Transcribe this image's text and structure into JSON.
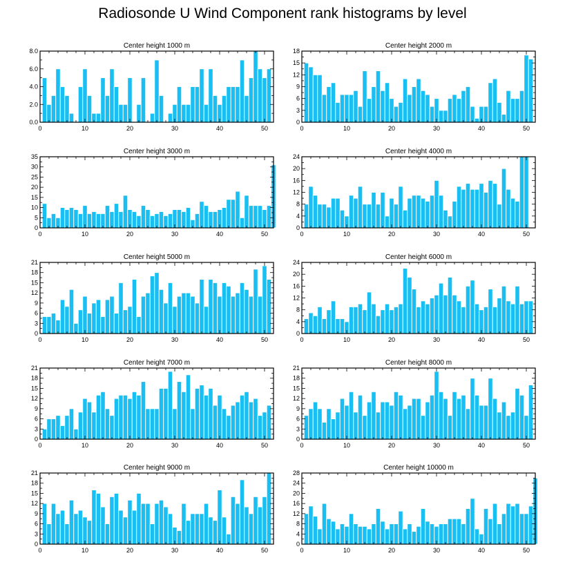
{
  "title": "Radiosonde U Wind Component rank histograms by level",
  "colors": {
    "bar": "#19bff2",
    "bar_edge": "#ffffff",
    "axis": "#000000"
  },
  "chart_data": [
    {
      "type": "bar",
      "title": "Center height 1000 m",
      "xlim": [
        0,
        52
      ],
      "ylim": [
        0,
        8
      ],
      "xticks": [
        0,
        10,
        20,
        30,
        40,
        50
      ],
      "yticks": [
        0,
        2,
        4,
        6,
        8
      ],
      "ytick_labels": [
        "0.0",
        "2.0",
        "4.0",
        "6.0",
        "8.0"
      ],
      "values": [
        5,
        2,
        3,
        6,
        4,
        3,
        1,
        0,
        4,
        6,
        3,
        1,
        1,
        5,
        3,
        6,
        4,
        2,
        2,
        5,
        0,
        2,
        5,
        0,
        1,
        7,
        3,
        0,
        1,
        2,
        4,
        2,
        2,
        4,
        4,
        6,
        2,
        6,
        3,
        2,
        3,
        4,
        4,
        4,
        7,
        3,
        5,
        8,
        6,
        5,
        6
      ]
    },
    {
      "type": "bar",
      "title": "Center height 2000 m",
      "xlim": [
        0,
        52
      ],
      "ylim": [
        0,
        18
      ],
      "xticks": [
        0,
        10,
        20,
        30,
        40,
        50
      ],
      "yticks": [
        0,
        3,
        6,
        9,
        12,
        15,
        18
      ],
      "ytick_labels": [
        "0",
        "3",
        "6",
        "9",
        "12",
        "15",
        "18"
      ],
      "values": [
        15,
        14,
        12,
        12,
        7,
        9,
        10,
        5,
        7,
        7,
        7,
        8,
        4,
        13,
        6,
        9,
        13,
        8,
        10,
        6,
        4,
        5,
        11,
        7,
        9,
        11,
        8,
        7,
        4,
        6,
        3,
        3,
        6,
        7,
        6,
        8,
        9,
        4,
        1,
        4,
        4,
        10,
        11,
        5,
        2,
        8,
        6,
        6,
        8,
        17,
        16
      ]
    },
    {
      "type": "bar",
      "title": "Center height 3000 m",
      "xlim": [
        0,
        52
      ],
      "ylim": [
        0,
        35
      ],
      "xticks": [
        0,
        10,
        20,
        30,
        40,
        50
      ],
      "yticks": [
        0,
        5,
        10,
        15,
        20,
        25,
        30,
        35
      ],
      "ytick_labels": [
        "0",
        "5",
        "10",
        "15",
        "20",
        "25",
        "30",
        "35"
      ],
      "values": [
        12,
        5,
        7,
        5,
        10,
        9,
        10,
        9,
        7,
        11,
        7,
        8,
        7,
        7,
        11,
        8,
        12,
        8,
        16,
        9,
        8,
        6,
        11,
        9,
        6,
        7,
        8,
        6,
        7,
        9,
        9,
        8,
        10,
        4,
        7,
        13,
        11,
        8,
        8,
        9,
        10,
        14,
        14,
        18,
        5,
        16,
        11,
        11,
        11,
        9,
        11,
        31
      ]
    },
    {
      "type": "bar",
      "title": "Center height 4000 m",
      "xlim": [
        0,
        52
      ],
      "ylim": [
        0,
        24
      ],
      "xticks": [
        0,
        10,
        20,
        30,
        40,
        50
      ],
      "yticks": [
        0,
        4,
        8,
        12,
        16,
        20,
        24
      ],
      "ytick_labels": [
        "0",
        "4",
        "8",
        "12",
        "16",
        "20",
        "24"
      ],
      "values": [
        8,
        14,
        11,
        8,
        8,
        7,
        10,
        10,
        6,
        4,
        11,
        10,
        14,
        8,
        8,
        12,
        8,
        12,
        4,
        10,
        8,
        14,
        6,
        10,
        11,
        11,
        10,
        9,
        11,
        16,
        11,
        6,
        4,
        9,
        14,
        13,
        15,
        13,
        13,
        15,
        12,
        16,
        15,
        8,
        20,
        13,
        10,
        9,
        25,
        25
      ]
    },
    {
      "type": "bar",
      "title": "Center height 5000 m",
      "xlim": [
        0,
        52
      ],
      "ylim": [
        0,
        21
      ],
      "xticks": [
        0,
        10,
        20,
        30,
        40,
        50
      ],
      "yticks": [
        0,
        3,
        6,
        9,
        12,
        15,
        18,
        21
      ],
      "ytick_labels": [
        "0",
        "3",
        "6",
        "9",
        "12",
        "15",
        "18",
        "21"
      ],
      "values": [
        5,
        5,
        6,
        4,
        10,
        8,
        13,
        3,
        7,
        11,
        6,
        9,
        10,
        5,
        10,
        11,
        6,
        15,
        7,
        8,
        16,
        5,
        11,
        12,
        17,
        18,
        13,
        9,
        15,
        8,
        11,
        12,
        12,
        11,
        9,
        16,
        8,
        16,
        15,
        11,
        15,
        14,
        11,
        12,
        15,
        13,
        11,
        19,
        11,
        20,
        16
      ]
    },
    {
      "type": "bar",
      "title": "Center height 6000 m",
      "xlim": [
        0,
        52
      ],
      "ylim": [
        0,
        24
      ],
      "xticks": [
        0,
        10,
        20,
        30,
        40,
        50
      ],
      "yticks": [
        0,
        4,
        8,
        12,
        16,
        20,
        24
      ],
      "ytick_labels": [
        "0",
        "4",
        "8",
        "12",
        "16",
        "20",
        "24"
      ],
      "values": [
        5,
        7,
        6,
        9,
        5,
        8,
        11,
        5,
        5,
        4,
        9,
        9,
        10,
        8,
        14,
        10,
        6,
        8,
        10,
        8,
        9,
        10,
        22,
        19,
        15,
        9,
        11,
        10,
        12,
        13,
        17,
        13,
        19,
        13,
        11,
        9,
        16,
        18,
        10,
        8,
        9,
        15,
        9,
        12,
        16,
        11,
        10,
        16,
        10,
        11,
        11
      ]
    },
    {
      "type": "bar",
      "title": "Center height 7000 m",
      "xlim": [
        0,
        52
      ],
      "ylim": [
        0,
        21
      ],
      "xticks": [
        0,
        10,
        20,
        30,
        40,
        50
      ],
      "yticks": [
        0,
        3,
        6,
        9,
        12,
        15,
        18,
        21
      ],
      "ytick_labels": [
        "0",
        "3",
        "6",
        "9",
        "12",
        "15",
        "18",
        "21"
      ],
      "values": [
        3,
        6,
        6,
        7,
        4,
        7,
        9,
        3,
        8,
        12,
        11,
        8,
        13,
        14,
        9,
        7,
        12,
        13,
        13,
        12,
        14,
        13,
        17,
        9,
        9,
        9,
        15,
        15,
        20,
        9,
        17,
        14,
        19,
        9,
        15,
        16,
        13,
        15,
        10,
        13,
        9,
        7,
        10,
        11,
        13,
        14,
        11,
        12,
        7,
        8,
        10
      ]
    },
    {
      "type": "bar",
      "title": "Center height 8000 m",
      "xlim": [
        0,
        52
      ],
      "ylim": [
        0,
        21
      ],
      "xticks": [
        0,
        10,
        20,
        30,
        40,
        50
      ],
      "yticks": [
        0,
        3,
        6,
        9,
        12,
        15,
        18,
        21
      ],
      "ytick_labels": [
        "0",
        "3",
        "6",
        "9",
        "12",
        "15",
        "18",
        "21"
      ],
      "values": [
        7,
        9,
        11,
        9,
        5,
        9,
        6,
        8,
        12,
        10,
        14,
        8,
        13,
        7,
        11,
        14,
        8,
        11,
        11,
        10,
        14,
        13,
        9,
        10,
        12,
        12,
        7,
        11,
        13,
        20,
        14,
        12,
        7,
        14,
        12,
        13,
        9,
        18,
        13,
        10,
        10,
        18,
        12,
        8,
        11,
        7,
        8,
        15,
        13,
        7,
        16
      ]
    },
    {
      "type": "bar",
      "title": "Center height 9000 m",
      "xlim": [
        0,
        52
      ],
      "ylim": [
        0,
        21
      ],
      "xticks": [
        0,
        10,
        20,
        30,
        40,
        50
      ],
      "yticks": [
        0,
        3,
        6,
        9,
        12,
        15,
        18,
        21
      ],
      "ytick_labels": [
        "0",
        "3",
        "6",
        "9",
        "12",
        "15",
        "18",
        "21"
      ],
      "values": [
        12,
        6,
        12,
        9,
        10,
        6,
        13,
        9,
        10,
        8,
        7,
        16,
        15,
        11,
        6,
        14,
        15,
        10,
        8,
        13,
        10,
        15,
        12,
        12,
        6,
        12,
        13,
        11,
        9,
        5,
        4,
        12,
        7,
        9,
        9,
        9,
        12,
        8,
        7,
        16,
        8,
        3,
        14,
        12,
        19,
        11,
        9,
        14,
        11,
        14,
        21
      ]
    },
    {
      "type": "bar",
      "title": "Center height 10000 m",
      "xlim": [
        0,
        52
      ],
      "ylim": [
        0,
        28
      ],
      "xticks": [
        0,
        10,
        20,
        30,
        40,
        50
      ],
      "yticks": [
        0,
        4,
        8,
        12,
        16,
        20,
        24,
        28
      ],
      "ytick_labels": [
        "0",
        "4",
        "8",
        "12",
        "16",
        "20",
        "24",
        "28"
      ],
      "values": [
        12,
        15,
        11,
        6,
        16,
        10,
        9,
        6,
        8,
        7,
        12,
        8,
        7,
        7,
        6,
        8,
        14,
        9,
        6,
        8,
        8,
        13,
        6,
        8,
        5,
        7,
        14,
        9,
        8,
        7,
        8,
        8,
        10,
        10,
        10,
        8,
        14,
        18,
        6,
        4,
        14,
        10,
        16,
        8,
        12,
        16,
        15,
        16,
        12,
        12,
        15,
        26
      ]
    }
  ]
}
